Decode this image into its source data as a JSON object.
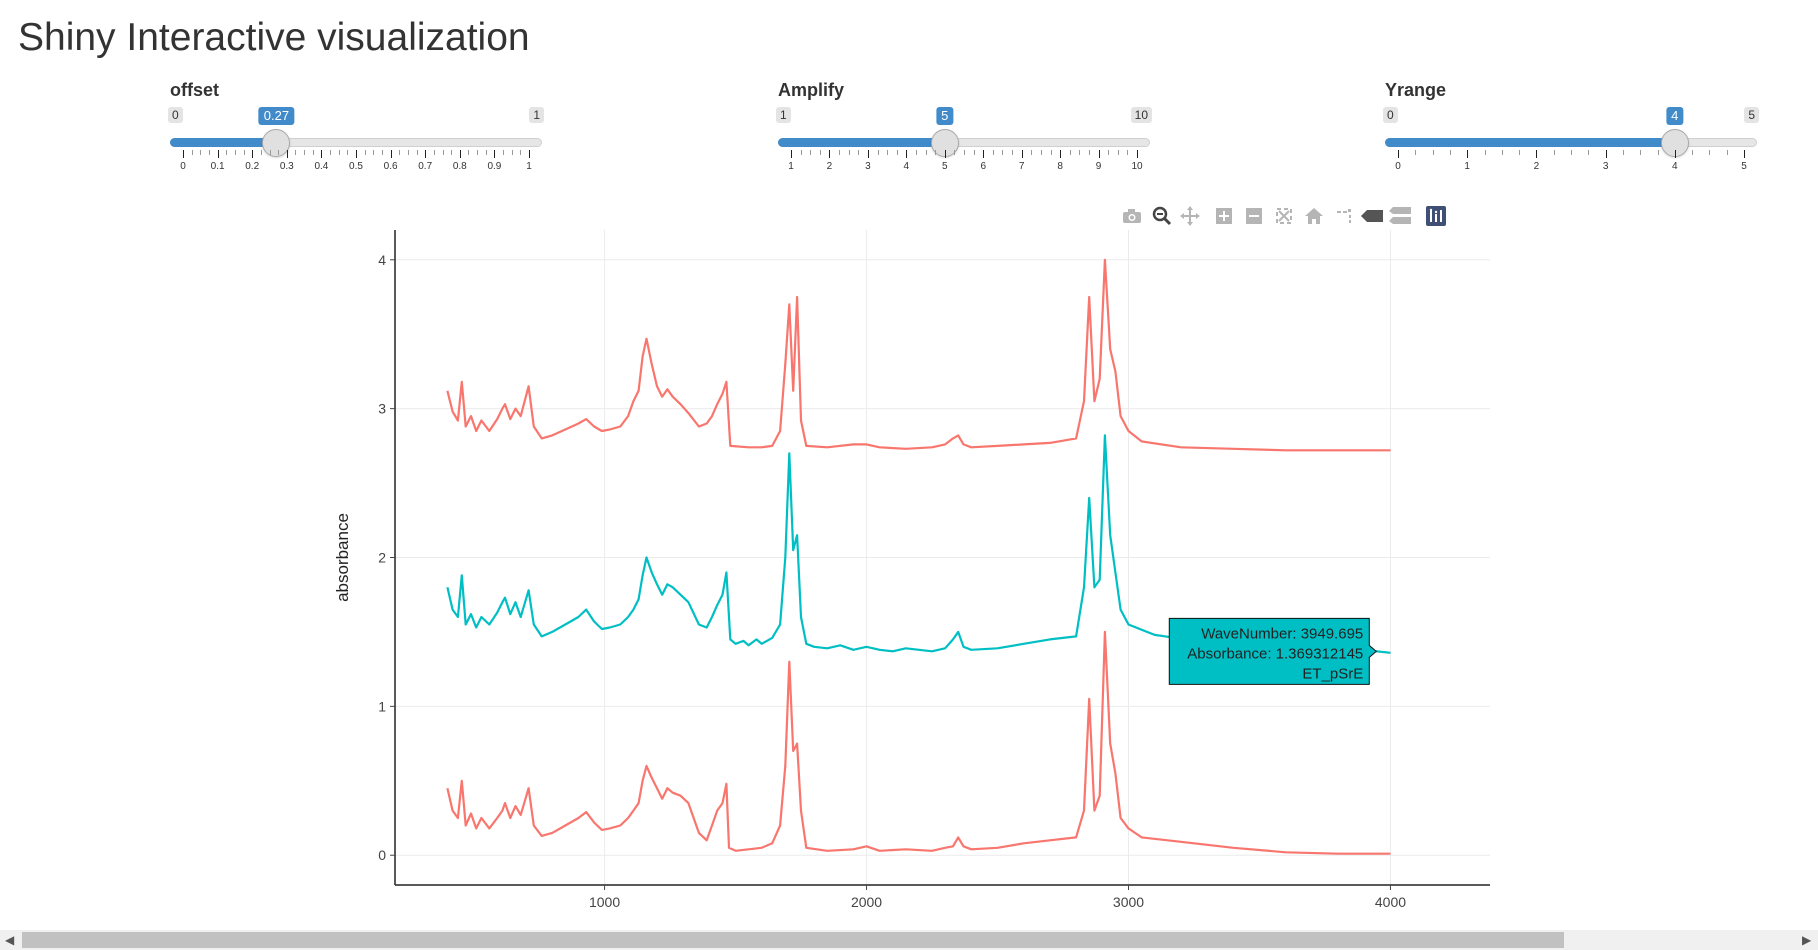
{
  "page": {
    "title": "Shiny Interactive visualization"
  },
  "sliders": [
    {
      "id": "offset",
      "label": "offset",
      "min": 0,
      "max": 1,
      "value": 0.27,
      "min_label": "0",
      "max_label": "1",
      "value_label": "0.27",
      "ticks": [
        0,
        0.1,
        0.2,
        0.3,
        0.4,
        0.5,
        0.6,
        0.7,
        0.8,
        0.9,
        1
      ],
      "tick_labels": [
        "0",
        "0.1",
        "0.2",
        "0.3",
        "0.4",
        "0.5",
        "0.6",
        "0.7",
        "0.8",
        "0.9",
        "1"
      ]
    },
    {
      "id": "amplify",
      "label": "Amplify",
      "min": 1,
      "max": 10,
      "value": 5,
      "min_label": "1",
      "max_label": "10",
      "value_label": "5",
      "ticks": [
        1,
        2,
        3,
        4,
        5,
        6,
        7,
        8,
        9,
        10
      ],
      "tick_labels": [
        "1",
        "2",
        "3",
        "4",
        "5",
        "6",
        "7",
        "8",
        "9",
        "10"
      ]
    },
    {
      "id": "yrange",
      "label": "Yrange",
      "min": 0,
      "max": 5,
      "value": 4,
      "min_label": "0",
      "max_label": "5",
      "value_label": "4",
      "ticks": [
        0,
        1,
        2,
        3,
        4,
        5
      ],
      "tick_labels": [
        "0",
        "1",
        "2",
        "3",
        "4",
        "5"
      ]
    }
  ],
  "modebar": {
    "buttons": [
      "camera-icon",
      "zoom-icon",
      "pan-icon",
      "zoom-in-icon",
      "zoom-out-icon",
      "autoscale-icon",
      "reset-axes-icon",
      "spike-lines-icon",
      "hover-closest-icon",
      "hover-compare-icon",
      "plotly-logo-icon"
    ]
  },
  "colors": {
    "accent": "#428bca",
    "red_series": "#f8766d",
    "teal_series": "#00bfc4",
    "grid": "#ebebeb"
  },
  "chart_data": {
    "type": "line",
    "title": "",
    "xlabel": "",
    "ylabel": "absorbance",
    "xlim": [
      200,
      4380
    ],
    "ylim": [
      -0.2,
      4.2
    ],
    "x_ticks": [
      1000,
      2000,
      3000,
      4000
    ],
    "x_tick_labels": [
      "1000",
      "2000",
      "3000",
      "4000"
    ],
    "y_ticks": [
      0,
      1,
      2,
      3,
      4
    ],
    "y_tick_labels": [
      "0",
      "1",
      "2",
      "3",
      "4"
    ],
    "grid": true,
    "series": [
      {
        "color": "#f8766d",
        "points": [
          [
            400,
            0.45
          ],
          [
            420,
            0.3
          ],
          [
            440,
            0.25
          ],
          [
            455,
            0.5
          ],
          [
            470,
            0.2
          ],
          [
            490,
            0.28
          ],
          [
            510,
            0.18
          ],
          [
            530,
            0.25
          ],
          [
            560,
            0.18
          ],
          [
            590,
            0.25
          ],
          [
            610,
            0.3
          ],
          [
            620,
            0.35
          ],
          [
            640,
            0.25
          ],
          [
            660,
            0.33
          ],
          [
            680,
            0.27
          ],
          [
            710,
            0.45
          ],
          [
            730,
            0.2
          ],
          [
            760,
            0.13
          ],
          [
            800,
            0.15
          ],
          [
            850,
            0.2
          ],
          [
            900,
            0.25
          ],
          [
            930,
            0.29
          ],
          [
            960,
            0.22
          ],
          [
            990,
            0.17
          ],
          [
            1020,
            0.18
          ],
          [
            1060,
            0.2
          ],
          [
            1090,
            0.25
          ],
          [
            1110,
            0.3
          ],
          [
            1130,
            0.35
          ],
          [
            1145,
            0.5
          ],
          [
            1160,
            0.6
          ],
          [
            1180,
            0.52
          ],
          [
            1200,
            0.45
          ],
          [
            1220,
            0.38
          ],
          [
            1240,
            0.45
          ],
          [
            1260,
            0.42
          ],
          [
            1290,
            0.4
          ],
          [
            1320,
            0.35
          ],
          [
            1360,
            0.15
          ],
          [
            1390,
            0.1
          ],
          [
            1410,
            0.2
          ],
          [
            1430,
            0.3
          ],
          [
            1450,
            0.35
          ],
          [
            1465,
            0.48
          ],
          [
            1475,
            0.05
          ],
          [
            1500,
            0.03
          ],
          [
            1550,
            0.04
          ],
          [
            1600,
            0.05
          ],
          [
            1640,
            0.08
          ],
          [
            1670,
            0.2
          ],
          [
            1690,
            0.6
          ],
          [
            1705,
            1.3
          ],
          [
            1720,
            0.7
          ],
          [
            1735,
            0.75
          ],
          [
            1750,
            0.3
          ],
          [
            1770,
            0.05
          ],
          [
            1850,
            0.03
          ],
          [
            1950,
            0.04
          ],
          [
            2000,
            0.06
          ],
          [
            2050,
            0.03
          ],
          [
            2150,
            0.04
          ],
          [
            2250,
            0.03
          ],
          [
            2300,
            0.05
          ],
          [
            2330,
            0.06
          ],
          [
            2350,
            0.12
          ],
          [
            2370,
            0.06
          ],
          [
            2400,
            0.04
          ],
          [
            2500,
            0.05
          ],
          [
            2600,
            0.08
          ],
          [
            2700,
            0.1
          ],
          [
            2800,
            0.12
          ],
          [
            2830,
            0.3
          ],
          [
            2850,
            1.05
          ],
          [
            2870,
            0.3
          ],
          [
            2890,
            0.4
          ],
          [
            2910,
            1.5
          ],
          [
            2930,
            0.75
          ],
          [
            2950,
            0.55
          ],
          [
            2970,
            0.25
          ],
          [
            3000,
            0.18
          ],
          [
            3050,
            0.12
          ],
          [
            3200,
            0.09
          ],
          [
            3400,
            0.05
          ],
          [
            3600,
            0.02
          ],
          [
            3800,
            0.01
          ],
          [
            4000,
            0.01
          ]
        ]
      },
      {
        "color": "#00bfc4",
        "points": [
          [
            400,
            1.8
          ],
          [
            420,
            1.65
          ],
          [
            440,
            1.6
          ],
          [
            455,
            1.88
          ],
          [
            470,
            1.55
          ],
          [
            490,
            1.62
          ],
          [
            510,
            1.53
          ],
          [
            530,
            1.6
          ],
          [
            560,
            1.55
          ],
          [
            590,
            1.63
          ],
          [
            610,
            1.7
          ],
          [
            620,
            1.73
          ],
          [
            640,
            1.62
          ],
          [
            660,
            1.7
          ],
          [
            680,
            1.6
          ],
          [
            710,
            1.78
          ],
          [
            730,
            1.55
          ],
          [
            760,
            1.47
          ],
          [
            800,
            1.5
          ],
          [
            850,
            1.55
          ],
          [
            900,
            1.6
          ],
          [
            930,
            1.65
          ],
          [
            960,
            1.57
          ],
          [
            990,
            1.52
          ],
          [
            1020,
            1.53
          ],
          [
            1060,
            1.55
          ],
          [
            1090,
            1.6
          ],
          [
            1110,
            1.65
          ],
          [
            1130,
            1.72
          ],
          [
            1145,
            1.88
          ],
          [
            1160,
            2.0
          ],
          [
            1180,
            1.9
          ],
          [
            1200,
            1.82
          ],
          [
            1220,
            1.75
          ],
          [
            1240,
            1.82
          ],
          [
            1260,
            1.8
          ],
          [
            1290,
            1.75
          ],
          [
            1320,
            1.7
          ],
          [
            1360,
            1.55
          ],
          [
            1390,
            1.53
          ],
          [
            1410,
            1.6
          ],
          [
            1430,
            1.68
          ],
          [
            1450,
            1.75
          ],
          [
            1465,
            1.9
          ],
          [
            1480,
            1.45
          ],
          [
            1500,
            1.42
          ],
          [
            1530,
            1.44
          ],
          [
            1550,
            1.41
          ],
          [
            1580,
            1.45
          ],
          [
            1600,
            1.42
          ],
          [
            1640,
            1.46
          ],
          [
            1670,
            1.55
          ],
          [
            1690,
            2.0
          ],
          [
            1705,
            2.7
          ],
          [
            1720,
            2.05
          ],
          [
            1735,
            2.15
          ],
          [
            1750,
            1.6
          ],
          [
            1770,
            1.42
          ],
          [
            1800,
            1.4
          ],
          [
            1850,
            1.39
          ],
          [
            1900,
            1.41
          ],
          [
            1950,
            1.38
          ],
          [
            2000,
            1.4
          ],
          [
            2050,
            1.38
          ],
          [
            2100,
            1.37
          ],
          [
            2150,
            1.39
          ],
          [
            2250,
            1.37
          ],
          [
            2300,
            1.39
          ],
          [
            2330,
            1.45
          ],
          [
            2350,
            1.5
          ],
          [
            2370,
            1.4
          ],
          [
            2400,
            1.38
          ],
          [
            2500,
            1.39
          ],
          [
            2600,
            1.42
          ],
          [
            2700,
            1.45
          ],
          [
            2800,
            1.47
          ],
          [
            2830,
            1.8
          ],
          [
            2850,
            2.4
          ],
          [
            2870,
            1.8
          ],
          [
            2890,
            1.85
          ],
          [
            2910,
            2.82
          ],
          [
            2930,
            2.15
          ],
          [
            2950,
            1.9
          ],
          [
            2970,
            1.65
          ],
          [
            3000,
            1.55
          ],
          [
            3100,
            1.48
          ],
          [
            3300,
            1.43
          ],
          [
            3500,
            1.42
          ],
          [
            3700,
            1.4
          ],
          [
            3949.695,
            1.369312145
          ],
          [
            4000,
            1.36
          ]
        ]
      },
      {
        "color": "#f8766d",
        "points": [
          [
            400,
            3.12
          ],
          [
            420,
            2.98
          ],
          [
            440,
            2.92
          ],
          [
            455,
            3.18
          ],
          [
            470,
            2.88
          ],
          [
            490,
            2.95
          ],
          [
            510,
            2.85
          ],
          [
            530,
            2.92
          ],
          [
            560,
            2.85
          ],
          [
            590,
            2.93
          ],
          [
            610,
            3.0
          ],
          [
            620,
            3.03
          ],
          [
            640,
            2.93
          ],
          [
            660,
            3.0
          ],
          [
            680,
            2.95
          ],
          [
            710,
            3.15
          ],
          [
            730,
            2.88
          ],
          [
            760,
            2.8
          ],
          [
            800,
            2.82
          ],
          [
            850,
            2.86
          ],
          [
            900,
            2.9
          ],
          [
            930,
            2.93
          ],
          [
            960,
            2.88
          ],
          [
            990,
            2.85
          ],
          [
            1020,
            2.86
          ],
          [
            1060,
            2.88
          ],
          [
            1090,
            2.95
          ],
          [
            1110,
            3.05
          ],
          [
            1130,
            3.12
          ],
          [
            1145,
            3.35
          ],
          [
            1160,
            3.47
          ],
          [
            1180,
            3.3
          ],
          [
            1200,
            3.15
          ],
          [
            1220,
            3.08
          ],
          [
            1240,
            3.13
          ],
          [
            1260,
            3.08
          ],
          [
            1290,
            3.03
          ],
          [
            1320,
            2.97
          ],
          [
            1360,
            2.88
          ],
          [
            1390,
            2.9
          ],
          [
            1410,
            2.95
          ],
          [
            1430,
            3.03
          ],
          [
            1450,
            3.1
          ],
          [
            1465,
            3.18
          ],
          [
            1480,
            2.75
          ],
          [
            1550,
            2.74
          ],
          [
            1600,
            2.74
          ],
          [
            1640,
            2.75
          ],
          [
            1670,
            2.85
          ],
          [
            1690,
            3.3
          ],
          [
            1705,
            3.7
          ],
          [
            1720,
            3.12
          ],
          [
            1735,
            3.75
          ],
          [
            1750,
            2.92
          ],
          [
            1770,
            2.75
          ],
          [
            1850,
            2.74
          ],
          [
            1950,
            2.76
          ],
          [
            2000,
            2.76
          ],
          [
            2050,
            2.74
          ],
          [
            2150,
            2.73
          ],
          [
            2250,
            2.74
          ],
          [
            2300,
            2.76
          ],
          [
            2330,
            2.8
          ],
          [
            2350,
            2.82
          ],
          [
            2370,
            2.76
          ],
          [
            2400,
            2.74
          ],
          [
            2500,
            2.75
          ],
          [
            2600,
            2.76
          ],
          [
            2700,
            2.77
          ],
          [
            2800,
            2.8
          ],
          [
            2830,
            3.05
          ],
          [
            2850,
            3.75
          ],
          [
            2870,
            3.05
          ],
          [
            2890,
            3.2
          ],
          [
            2910,
            4.0
          ],
          [
            2930,
            3.4
          ],
          [
            2950,
            3.25
          ],
          [
            2970,
            2.95
          ],
          [
            3000,
            2.85
          ],
          [
            3050,
            2.78
          ],
          [
            3200,
            2.74
          ],
          [
            3400,
            2.73
          ],
          [
            3600,
            2.72
          ],
          [
            3800,
            2.72
          ],
          [
            4000,
            2.72
          ]
        ]
      }
    ],
    "tooltip": {
      "line1": "WaveNumber: 3949.695",
      "line2": "Absorbance: 1.369312145",
      "line3": "ET_pSrE",
      "x": 3949.695,
      "y": 1.369312145,
      "color": "#00bfc4"
    }
  }
}
